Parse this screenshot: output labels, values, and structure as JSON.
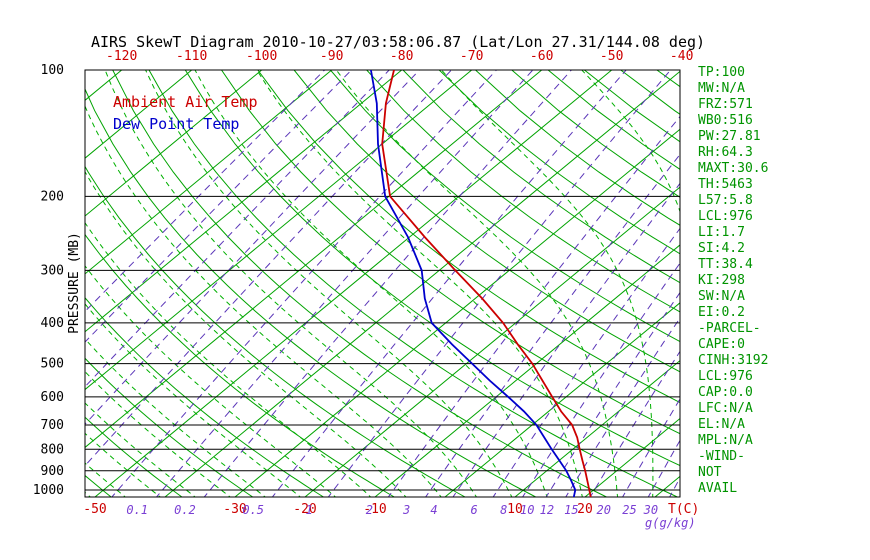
{
  "title": "AIRS SkewT Diagram 2010-10-27/03:58:06.87 (Lat/Lon 27.31/144.08 deg)",
  "legend": {
    "temp": "Ambient Air Temp",
    "dew": "Dew Point Temp"
  },
  "axes": {
    "pressure_label": "PRESSURE (MB)",
    "pressure_ticks": [
      100,
      200,
      300,
      400,
      500,
      600,
      700,
      800,
      900,
      1000
    ],
    "top_temp_ticks": [
      -120,
      -110,
      -100,
      -90,
      -80,
      -70,
      -60,
      -50,
      -40
    ],
    "bottom_temp_ticks": [
      -50,
      -30,
      -20,
      -10,
      10,
      20
    ],
    "temp_unit_label": "T(C)",
    "mixing_unit_label": "g(g/kg)",
    "mixing_ratio_labels": [
      0.1,
      0.2,
      0.5,
      1,
      2,
      3,
      4,
      6,
      8,
      10,
      12,
      15,
      20,
      25,
      30
    ]
  },
  "stats": [
    "TP:100",
    "MW:N/A",
    "FRZ:571",
    "WB0:516",
    "PW:27.81",
    "RH:64.3",
    "MAXT:30.6",
    "TH:5463",
    "L57:5.8",
    "LCL:976",
    "LI:1.7",
    "SI:4.2",
    "TT:38.4",
    "KI:298",
    "SW:N/A",
    "EI:0.2",
    "-PARCEL-",
    "CAPE:0",
    "CINH:3192",
    "LCL:976",
    "CAP:0.0",
    "LFC:N/A",
    "EL:N/A",
    "MPL:N/A",
    "-WIND-",
    "NOT",
    "AVAIL"
  ],
  "colors": {
    "axis": "#000000",
    "isotherm": "#00a300",
    "dry_adiabat": "#00a300",
    "moist_adiabat": "#00b000",
    "mixing_ratio": "#5a35b8",
    "temp_profile": "#cc0000",
    "dew_profile": "#0000cc",
    "temp_labels": "#cc0000",
    "mixing_labels": "#7a3fd4",
    "stats_text": "#009400"
  },
  "chart_data": {
    "type": "line",
    "variant": "skew-t-log-p",
    "title": "AIRS SkewT Diagram 2010-10-27/03:58:06.87 (Lat/Lon 27.31/144.08 deg)",
    "xlabel": "Temperature (C)",
    "ylabel": "Pressure (MB)",
    "pressure_range_mb": [
      100,
      1050
    ],
    "surface_temp_range_c": [
      -52,
      34
    ],
    "grid": "skew-t background: green solid isotherms every 10C, green solid dry adiabats, green dashed moist adiabats, purple dashed mixing-ratio lines, black horizontal isobars",
    "legend_position": "top-left inside plot",
    "series": [
      {
        "name": "Ambient Air Temp",
        "color": "#cc0000",
        "points": [
          [
            1047,
            21.1
          ],
          [
            1000,
            19.4
          ],
          [
            950,
            17.5
          ],
          [
            900,
            15.5
          ],
          [
            850,
            13.3
          ],
          [
            800,
            11.0
          ],
          [
            750,
            8.6
          ],
          [
            700,
            5.7
          ],
          [
            650,
            1.8
          ],
          [
            600,
            -2.0
          ],
          [
            550,
            -6.1
          ],
          [
            500,
            -10.6
          ],
          [
            450,
            -16.0
          ],
          [
            400,
            -21.8
          ],
          [
            350,
            -29.0
          ],
          [
            300,
            -37.7
          ],
          [
            250,
            -47.8
          ],
          [
            200,
            -59.8
          ],
          [
            150,
            -70.0
          ],
          [
            120,
            -76.5
          ],
          [
            100,
            -81.1
          ]
        ]
      },
      {
        "name": "Dew Point Temp",
        "color": "#0000cc",
        "points": [
          [
            1047,
            18.6
          ],
          [
            1000,
            17.4
          ],
          [
            950,
            15.2
          ],
          [
            900,
            12.8
          ],
          [
            850,
            10.0
          ],
          [
            800,
            7.0
          ],
          [
            750,
            3.9
          ],
          [
            700,
            0.6
          ],
          [
            650,
            -3.5
          ],
          [
            600,
            -8.3
          ],
          [
            550,
            -13.6
          ],
          [
            500,
            -19.2
          ],
          [
            450,
            -25.4
          ],
          [
            400,
            -32.0
          ],
          [
            350,
            -37.2
          ],
          [
            300,
            -42.5
          ],
          [
            250,
            -50.2
          ],
          [
            200,
            -60.5
          ],
          [
            150,
            -70.6
          ],
          [
            120,
            -77.8
          ],
          [
            100,
            -84.4
          ]
        ]
      }
    ],
    "background": {
      "isotherms_c": {
        "min": -140,
        "max": 40,
        "step": 10
      },
      "dry_adiabats_k": {
        "min": 213,
        "max": 453,
        "step": 10
      },
      "moist_adiabats_c": {
        "min": -60,
        "max": 40,
        "step": 5
      },
      "mixing_ratio_lines": [
        0.001,
        0.002,
        0.005,
        0.01,
        0.02,
        0.05,
        0.1,
        0.2,
        0.5,
        1,
        2,
        3,
        4,
        6,
        8,
        10,
        12,
        15,
        20,
        25,
        30
      ]
    }
  }
}
